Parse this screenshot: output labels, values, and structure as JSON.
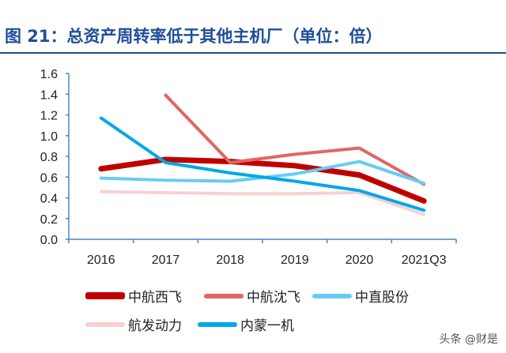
{
  "chart_data": {
    "type": "line",
    "title": "图 21：总资产周转率低于其他主机厂（单位：倍）",
    "categories": [
      "2016",
      "2017",
      "2018",
      "2019",
      "2020",
      "2021Q3"
    ],
    "ylim": [
      0,
      1.6
    ],
    "yticks": [
      "0.0",
      "0.2",
      "0.4",
      "0.6",
      "0.8",
      "1.0",
      "1.2",
      "1.4",
      "1.6"
    ],
    "grid": false,
    "legend": "bottom",
    "series": [
      {
        "name": "中航西飞",
        "color": "#c00000",
        "width": 7,
        "values": [
          0.68,
          0.77,
          0.75,
          0.71,
          0.62,
          0.37
        ]
      },
      {
        "name": "中航沈飞",
        "color": "#e06666",
        "width": 4,
        "values": [
          null,
          1.39,
          0.74,
          0.82,
          0.88,
          0.53
        ]
      },
      {
        "name": "中直股份",
        "color": "#66ccf5",
        "width": 4,
        "values": [
          0.59,
          0.57,
          0.56,
          0.63,
          0.75,
          0.54
        ]
      },
      {
        "name": "航发动力",
        "color": "#f8d0d0",
        "width": 4,
        "values": [
          0.46,
          0.45,
          0.44,
          0.44,
          0.45,
          0.24
        ]
      },
      {
        "name": "内蒙一机",
        "color": "#00a8e6",
        "width": 4,
        "values": [
          1.17,
          0.74,
          0.64,
          0.56,
          0.47,
          0.28
        ]
      }
    ]
  },
  "watermark": "头条 @财是"
}
